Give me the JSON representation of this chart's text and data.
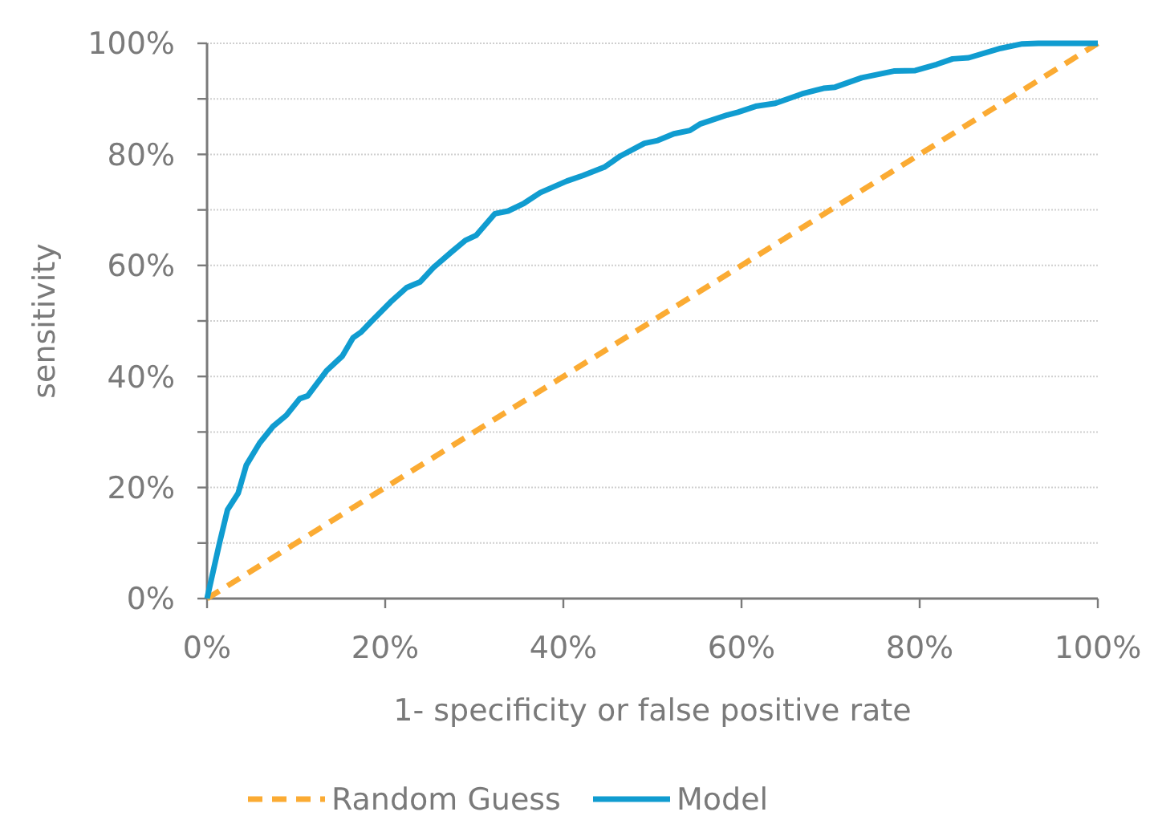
{
  "chart_data": {
    "type": "line",
    "xlabel": "1- specificity or false positive rate",
    "ylabel": "sensitivity",
    "xlim": [
      0,
      100
    ],
    "ylim": [
      0,
      100
    ],
    "xticks": [
      {
        "value": 0,
        "label": "0%"
      },
      {
        "value": 20,
        "label": "20%"
      },
      {
        "value": 40,
        "label": "40%"
      },
      {
        "value": 60,
        "label": "60%"
      },
      {
        "value": 80,
        "label": "80%"
      },
      {
        "value": 100,
        "label": "100%"
      }
    ],
    "yticks": [
      {
        "value": 0,
        "label": "0%"
      },
      {
        "value": 10,
        "label": null
      },
      {
        "value": 20,
        "label": "20%"
      },
      {
        "value": 30,
        "label": null
      },
      {
        "value": 40,
        "label": "40%"
      },
      {
        "value": 50,
        "label": null
      },
      {
        "value": 60,
        "label": "60%"
      },
      {
        "value": 70,
        "label": null
      },
      {
        "value": 80,
        "label": "80%"
      },
      {
        "value": 90,
        "label": null
      },
      {
        "value": 100,
        "label": "100%"
      }
    ],
    "grid": "y",
    "legend": "bottom",
    "series": [
      {
        "name": "Random Guess",
        "color": "#fbab33",
        "line_style": "dashed",
        "x": [
          0,
          100
        ],
        "values": [
          0,
          100
        ]
      },
      {
        "name": "Model",
        "color": "#109cd0",
        "line_style": "solid",
        "x": [
          0,
          1.4,
          2.3,
          3.5,
          4.4,
          5.9,
          7.4,
          8.9,
          10.4,
          11.3,
          13.4,
          15.2,
          16.4,
          17.3,
          18.5,
          20.6,
          22.4,
          23.9,
          25.4,
          27.5,
          29,
          30.2,
          32.3,
          33.8,
          35.6,
          37.4,
          40.4,
          42.2,
          44.6,
          46.4,
          49.1,
          50.6,
          52.4,
          54.2,
          55.4,
          58.4,
          59.6,
          61.7,
          63.8,
          66.8,
          69.2,
          70.5,
          73.5,
          77.1,
          79.5,
          81.9,
          83.7,
          85.5,
          89.1,
          91.5,
          93.3,
          100
        ],
        "values": [
          0,
          10,
          16,
          19,
          24,
          28,
          31,
          33,
          36,
          36.5,
          41,
          43.7,
          47,
          48,
          50,
          53.4,
          56,
          57,
          59.6,
          62.5,
          64.5,
          65.4,
          69.3,
          69.8,
          71.2,
          73.1,
          75.2,
          76.2,
          77.7,
          79.7,
          82,
          82.5,
          83.7,
          84.3,
          85.5,
          87.1,
          87.6,
          88.7,
          89.2,
          90.9,
          91.9,
          92.1,
          93.8,
          95,
          95.1,
          96.2,
          97.2,
          97.4,
          99.1,
          99.9,
          100,
          100
        ]
      }
    ]
  }
}
